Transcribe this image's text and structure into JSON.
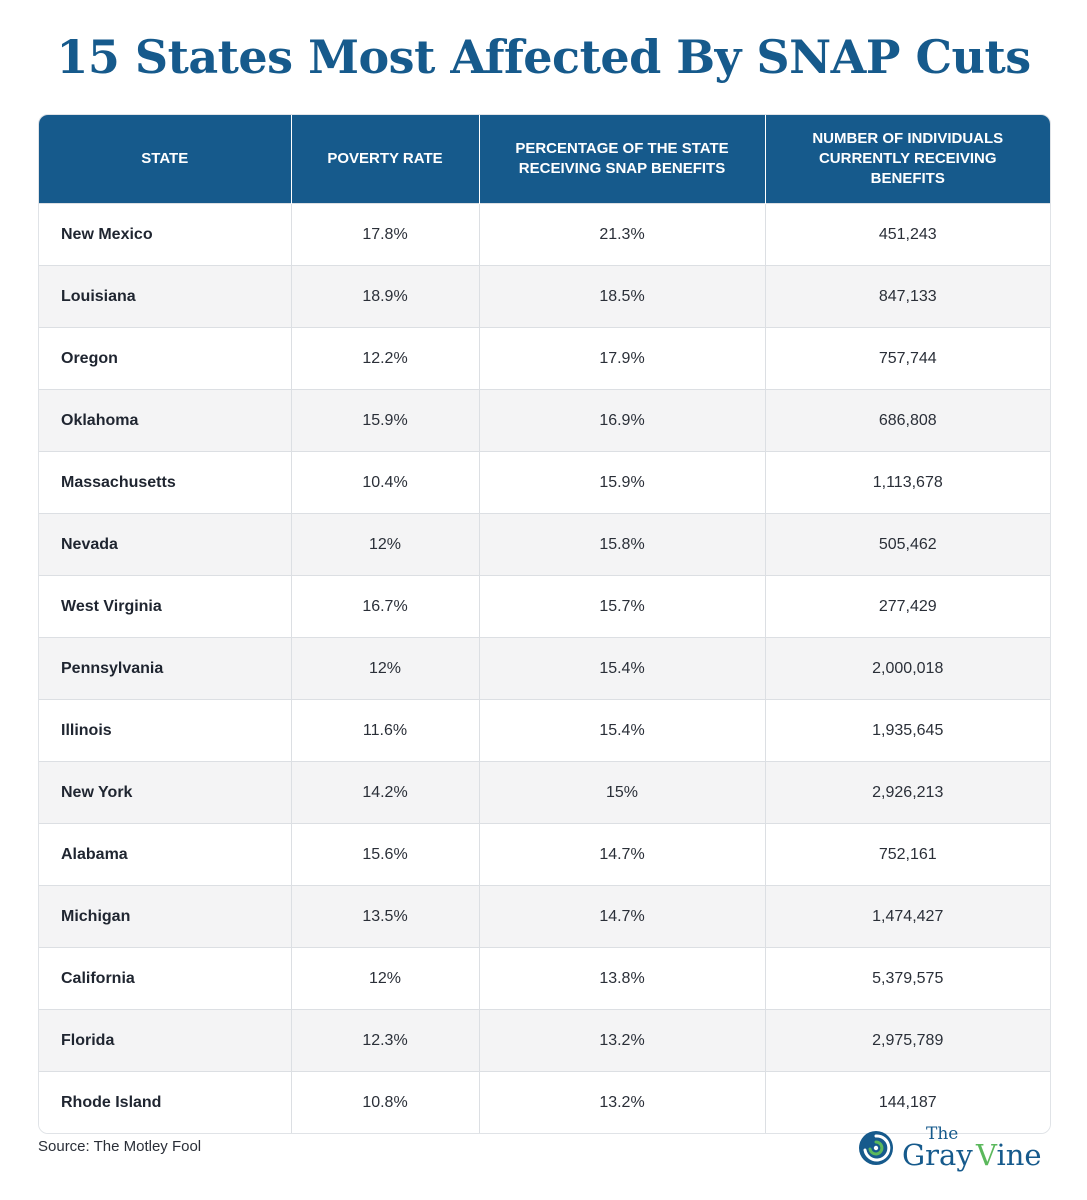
{
  "title": "15 States Most Affected By SNAP Cuts",
  "source": "Source: The Motley Fool",
  "brand": {
    "the": "The",
    "gray": "Gray",
    "vine_v": "V",
    "vine_rest": "ine"
  },
  "colors": {
    "header_bg": "#165a8c",
    "title": "#165a8c",
    "logo_green": "#5bb85c",
    "zebra": "#f4f4f5"
  },
  "chart_data": {
    "type": "table",
    "title": "15 States Most Affected By SNAP Cuts",
    "columns": [
      "STATE",
      "POVERTY RATE",
      "PERCENTAGE OF THE STATE RECEIVING SNAP BENEFITS",
      "NUMBER OF INDIVIDUALS CURRENTLY RECEIVING BENEFITS"
    ],
    "rows": [
      [
        "New Mexico",
        "17.8%",
        "21.3%",
        "451,243"
      ],
      [
        "Louisiana",
        "18.9%",
        "18.5%",
        "847,133"
      ],
      [
        "Oregon",
        "12.2%",
        "17.9%",
        "757,744"
      ],
      [
        "Oklahoma",
        "15.9%",
        "16.9%",
        "686,808"
      ],
      [
        "Massachusetts",
        "10.4%",
        "15.9%",
        "1,113,678"
      ],
      [
        "Nevada",
        "12%",
        "15.8%",
        "505,462"
      ],
      [
        "West Virginia",
        "16.7%",
        "15.7%",
        "277,429"
      ],
      [
        "Pennsylvania",
        "12%",
        "15.4%",
        "2,000,018"
      ],
      [
        "Illinois",
        "11.6%",
        "15.4%",
        "1,935,645"
      ],
      [
        "New York",
        "14.2%",
        "15%",
        "2,926,213"
      ],
      [
        "Alabama",
        "15.6%",
        "14.7%",
        "752,161"
      ],
      [
        "Michigan",
        "13.5%",
        "14.7%",
        "1,474,427"
      ],
      [
        "California",
        "12%",
        "13.8%",
        "5,379,575"
      ],
      [
        "Florida",
        "12.3%",
        "13.2%",
        "2,975,789"
      ],
      [
        "Rhode Island",
        "10.8%",
        "13.2%",
        "144,187"
      ]
    ]
  }
}
